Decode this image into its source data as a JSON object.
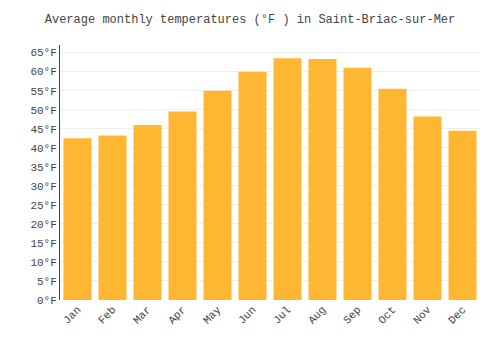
{
  "chart_data": {
    "type": "bar",
    "title": "Average monthly temperatures (°F ) in Saint-Briac-sur-Mer",
    "categories": [
      "Jan",
      "Feb",
      "Mar",
      "Apr",
      "May",
      "Jun",
      "Jul",
      "Aug",
      "Sep",
      "Oct",
      "Nov",
      "Dec"
    ],
    "values": [
      42.5,
      43.2,
      46.0,
      49.5,
      55.0,
      60.0,
      63.5,
      63.3,
      61.0,
      55.5,
      48.2,
      44.5
    ],
    "color": "#FFB733",
    "ylim": [
      0,
      67
    ],
    "yticks": [
      {
        "value": 0,
        "label": "0°F"
      },
      {
        "value": 5,
        "label": "5°F"
      },
      {
        "value": 10,
        "label": "10°F"
      },
      {
        "value": 15,
        "label": "15°F"
      },
      {
        "value": 20,
        "label": "20°F"
      },
      {
        "value": 25,
        "label": "25°F"
      },
      {
        "value": 30,
        "label": "30°F"
      },
      {
        "value": 35,
        "label": "35°F"
      },
      {
        "value": 40,
        "label": "40°F"
      },
      {
        "value": 45,
        "label": "45°F"
      },
      {
        "value": 50,
        "label": "50°F"
      },
      {
        "value": 55,
        "label": "55°F"
      },
      {
        "value": 60,
        "label": "60°F"
      },
      {
        "value": 65,
        "label": "65°F"
      }
    ],
    "grid": true
  }
}
